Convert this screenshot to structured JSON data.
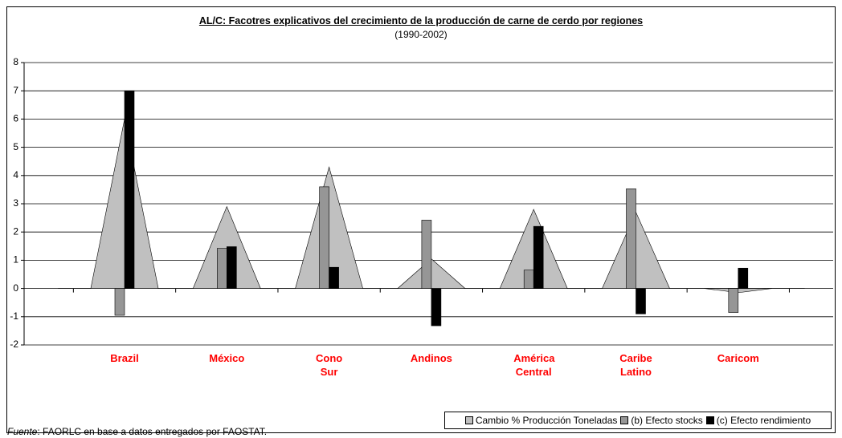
{
  "chart_data": {
    "type": "bar",
    "title": "AL/C: Facotres explicativos del crecimiento de la producción de carne de cerdo por regiones",
    "subtitle": "(1990-2002)",
    "categories": [
      "Brazil",
      "México",
      "Cono Sur",
      "Andinos",
      "América Central",
      "Caribe Latino",
      "Caricom"
    ],
    "category_color": "#ff0000",
    "series": [
      {
        "name": "Cambio % Producción Toneladas",
        "type": "area",
        "color": "#c0c0c0",
        "values": [
          6.0,
          2.9,
          4.3,
          1.05,
          2.8,
          2.7,
          -0.15
        ]
      },
      {
        "name": "(b) Efecto stocks",
        "type": "bar",
        "color": "#969696",
        "values": [
          -0.95,
          1.42,
          3.6,
          2.42,
          0.65,
          3.53,
          -0.85
        ]
      },
      {
        "name": "(c) Efecto rendimiento",
        "type": "bar",
        "color": "#000000",
        "values": [
          7.0,
          1.48,
          0.75,
          -1.32,
          2.2,
          -0.9,
          0.72
        ]
      }
    ],
    "ylim": [
      -2,
      8
    ],
    "yticks": [
      -2,
      -1,
      0,
      1,
      2,
      3,
      4,
      5,
      6,
      7,
      8
    ],
    "grid": true,
    "legend": "bottom-right",
    "source_label": "Fuente",
    "source_text": ": FAORLC en base a datos entregados por FAOSTAT."
  }
}
